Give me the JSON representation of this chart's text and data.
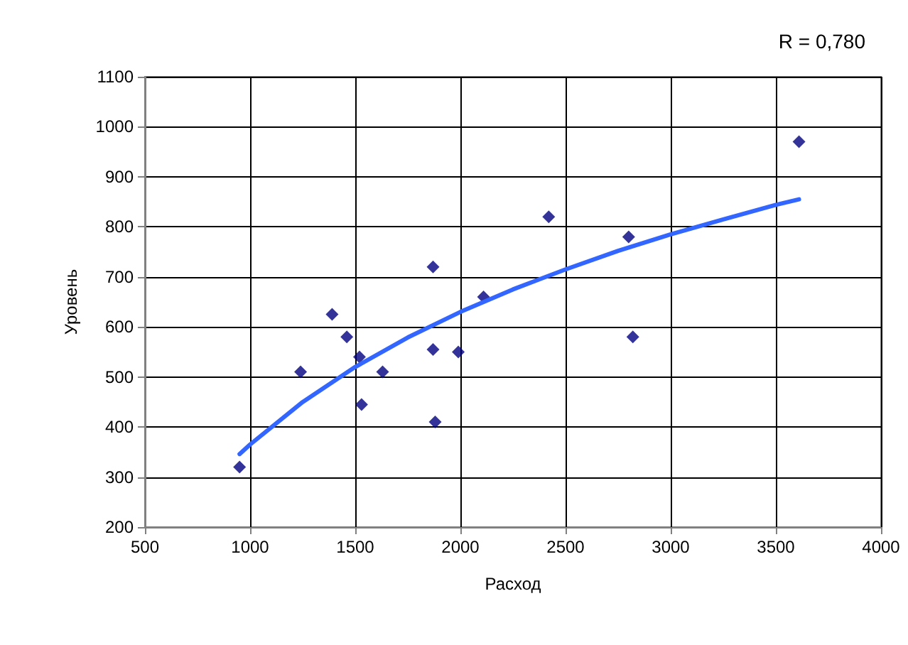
{
  "chart_data": {
    "type": "scatter",
    "xlabel": "Расход",
    "ylabel": "Уровень",
    "annotations": [
      "R = 0,780"
    ],
    "xlim": [
      500,
      4000
    ],
    "xticks": [
      500,
      1000,
      1500,
      2000,
      2500,
      3000,
      3500,
      4000
    ],
    "ylim": [
      200,
      1100
    ],
    "yticks": [
      200,
      300,
      400,
      500,
      600,
      700,
      800,
      900,
      1000,
      1100
    ],
    "grid": true,
    "marker": "diamond",
    "series": [
      {
        "color": "#000080",
        "x": [
          950,
          1240,
          1390,
          1460,
          1520,
          1630,
          1530,
          1870,
          1870,
          1880,
          1990,
          2110,
          2420,
          2800,
          2820,
          3610
        ],
        "values": [
          320,
          510,
          625,
          580,
          540,
          510,
          445,
          720,
          555,
          410,
          550,
          660,
          820,
          780,
          580,
          970
        ]
      },
      {
        "type": "line",
        "color": "#3366ff",
        "marker": "none",
        "line_style": "solid",
        "x": [
          950,
          1000,
          1250,
          1500,
          1750,
          2000,
          2250,
          2500,
          2750,
          3000,
          3250,
          3500,
          3610
        ],
        "values": [
          346,
          365,
          450,
          520,
          579,
          630,
          675,
          715,
          752,
          785,
          815,
          844,
          855
        ]
      }
    ]
  }
}
